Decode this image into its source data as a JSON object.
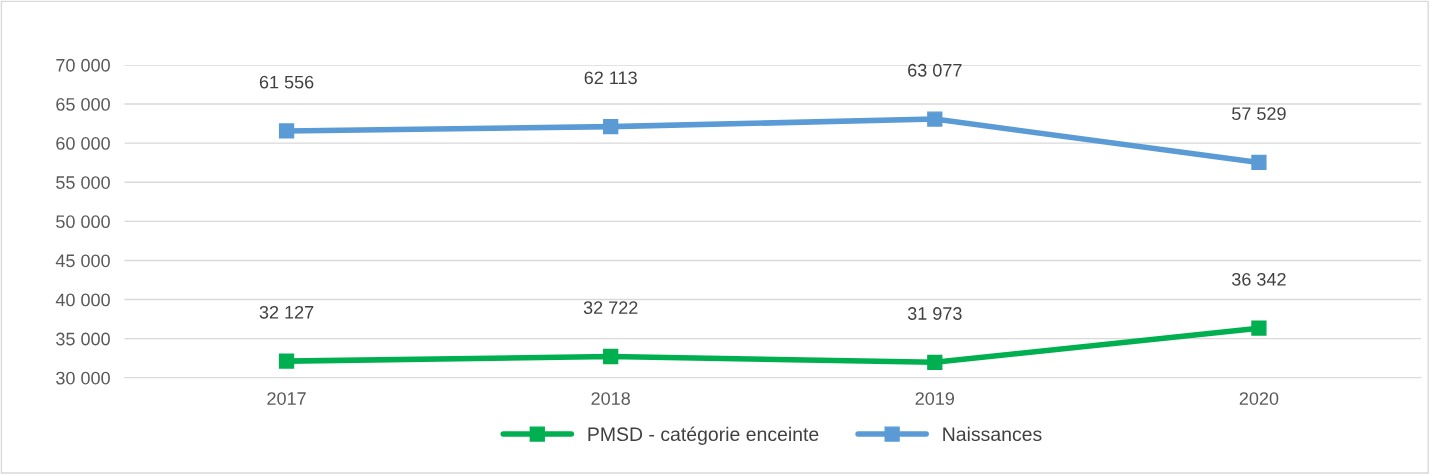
{
  "chart_data": {
    "type": "line",
    "categories": [
      "2017",
      "2018",
      "2019",
      "2020"
    ],
    "series": [
      {
        "name": "PMSD - catégorie enceinte",
        "color": "#00b050",
        "values": [
          32127,
          32722,
          31973,
          36342
        ],
        "value_labels": [
          "32 127",
          "32 722",
          "31 973",
          "36 342"
        ]
      },
      {
        "name": "Naissances",
        "color": "#5b9bd5",
        "values": [
          61556,
          62113,
          63077,
          57529
        ],
        "value_labels": [
          "61 556",
          "62 113",
          "63 077",
          "57 529"
        ]
      }
    ],
    "ylim": [
      30000,
      70000
    ],
    "yticks": [
      {
        "value": 30000,
        "label": "30 000"
      },
      {
        "value": 35000,
        "label": "35 000"
      },
      {
        "value": 40000,
        "label": "40 000"
      },
      {
        "value": 45000,
        "label": "45 000"
      },
      {
        "value": 50000,
        "label": "50 000"
      },
      {
        "value": 55000,
        "label": "55 000"
      },
      {
        "value": 60000,
        "label": "60 000"
      },
      {
        "value": 65000,
        "label": "65 000"
      },
      {
        "value": 70000,
        "label": "70 000"
      }
    ],
    "grid": "y",
    "legend": "bottom",
    "marker": "square",
    "line_style": "solid"
  }
}
